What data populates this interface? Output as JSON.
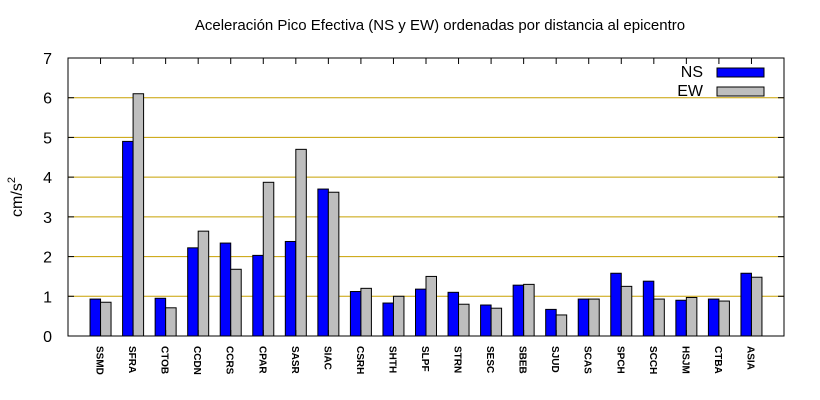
{
  "chart_data": {
    "type": "bar",
    "title": "Aceleración Pico Efectiva (NS y EW) ordenadas por distancia al epicentro",
    "xlabel": "",
    "ylabel": "cm/s",
    "ylabel_superscript": "2",
    "ylim": [
      0,
      7
    ],
    "yticks": [
      0,
      1,
      2,
      3,
      4,
      5,
      6,
      7
    ],
    "grid": "horizontal",
    "legend_position": "top-right",
    "categories": [
      "SSMD",
      "SFRA",
      "CTOB",
      "CCDN",
      "CCRS",
      "CPAR",
      "SASR",
      "SIAC",
      "CSRH",
      "SHTH",
      "SLPF",
      "STRN",
      "SESC",
      "SBEB",
      "SJUD",
      "SCAS",
      "SPCH",
      "SCCH",
      "HSJM",
      "CTBA",
      "ASIA"
    ],
    "series": [
      {
        "name": "NS",
        "color": "#0000ff",
        "values": [
          0.93,
          4.9,
          0.95,
          2.22,
          2.34,
          2.03,
          2.38,
          3.7,
          1.12,
          0.83,
          1.18,
          1.1,
          0.78,
          1.28,
          0.67,
          0.93,
          1.58,
          1.38,
          0.9,
          0.93,
          1.58
        ]
      },
      {
        "name": "EW",
        "color": "#bebebe",
        "values": [
          0.85,
          6.1,
          0.71,
          2.64,
          1.68,
          3.87,
          4.7,
          3.62,
          1.2,
          1.0,
          1.5,
          0.8,
          0.7,
          1.3,
          0.53,
          0.93,
          1.25,
          0.93,
          0.97,
          0.88,
          1.48
        ]
      }
    ]
  }
}
